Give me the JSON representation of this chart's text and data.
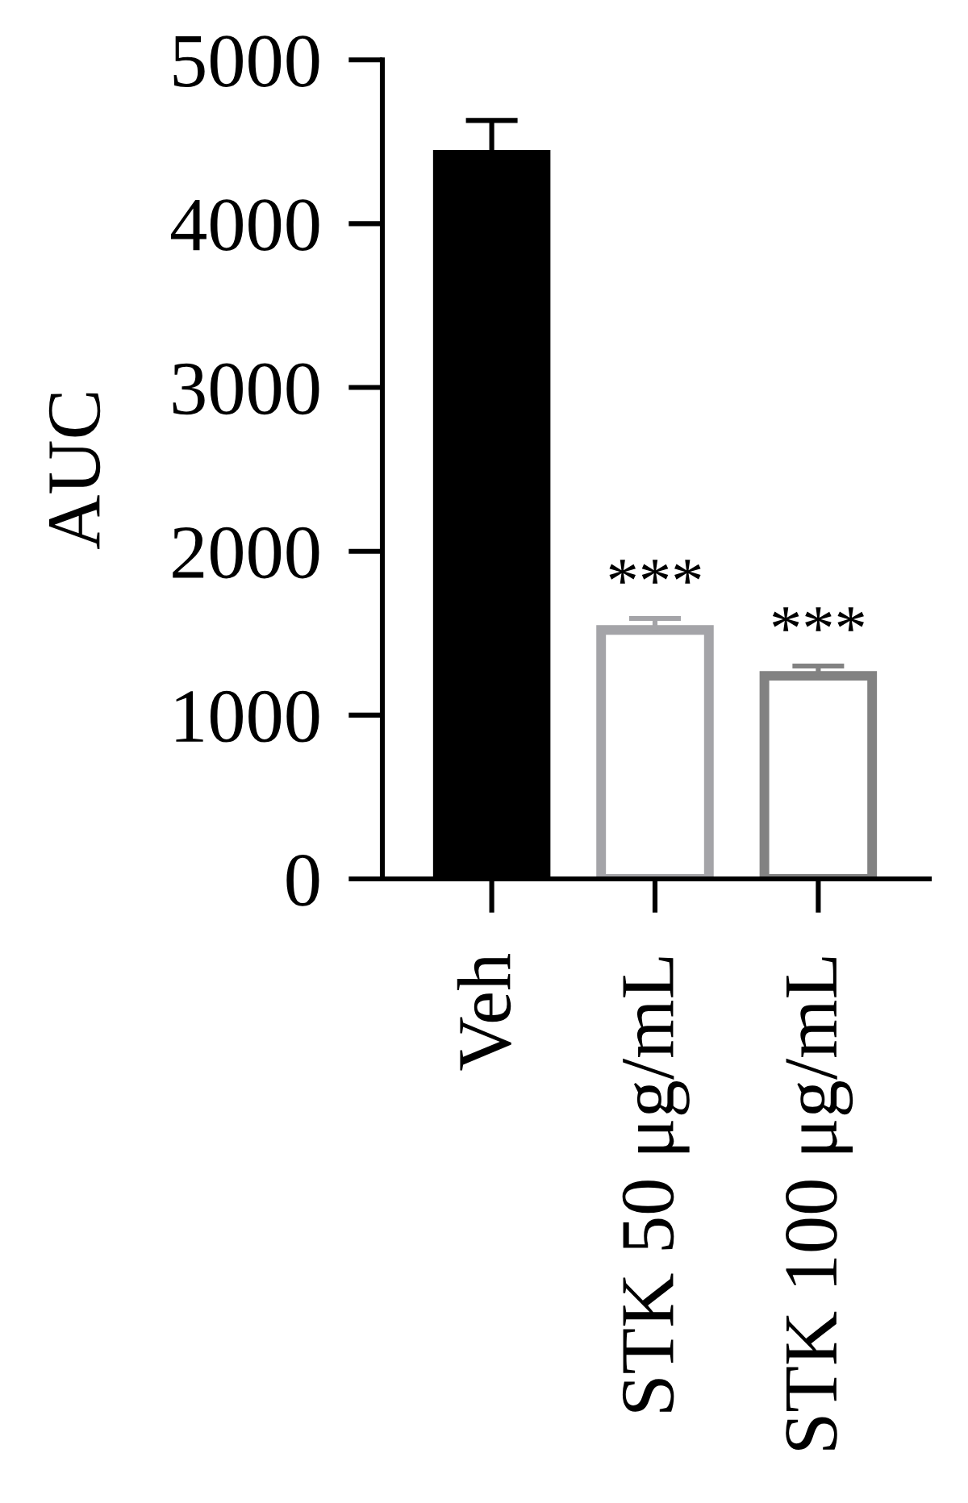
{
  "chart_data": {
    "type": "bar",
    "ylabel": "AUC",
    "categories": [
      "Veh",
      "STK 50 μg/mL",
      "STK 100 μg/mL"
    ],
    "values": [
      4420,
      1520,
      1240
    ],
    "colors": [
      "#000000",
      "#a4a4a8",
      "#828282"
    ],
    "errors": [
      [
        4420,
        4630
      ],
      [
        1520,
        1590
      ],
      [
        1240,
        1300
      ]
    ],
    "ylim": [
      0,
      5000
    ],
    "yticks": [
      0,
      1000,
      2000,
      3000,
      4000,
      5000
    ],
    "annotations": [
      {
        "text": "***",
        "x": "STK 50 μg/mL",
        "y": 1590
      },
      {
        "text": "***",
        "x": "STK 100 μg/mL",
        "y": 1300
      }
    ]
  }
}
